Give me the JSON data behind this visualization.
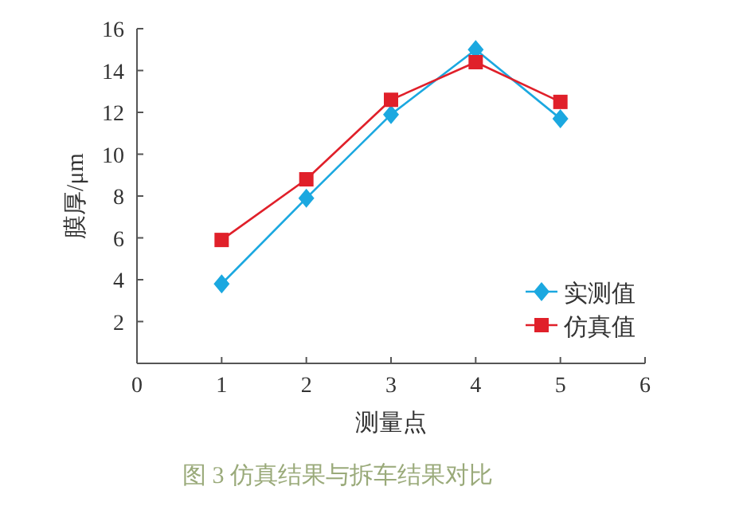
{
  "chart_data": {
    "type": "line",
    "xlabel": "测量点",
    "ylabel": "膜厚/μm",
    "annotations": [
      "图 3  仿真结果与拆车结果对比"
    ],
    "x": [
      1,
      2,
      3,
      4,
      5
    ],
    "series": [
      {
        "name": "实测值",
        "color": "#1ba8e0",
        "marker": "diamond",
        "values": [
          3.8,
          7.9,
          11.9,
          15.0,
          11.7
        ]
      },
      {
        "name": "仿真值",
        "color": "#e0202a",
        "marker": "square",
        "values": [
          5.9,
          8.8,
          12.6,
          14.4,
          12.5
        ]
      }
    ],
    "xlim": [
      0,
      6
    ],
    "xticks": [
      0,
      1,
      2,
      3,
      4,
      5,
      6
    ],
    "ylim": [
      0,
      16
    ],
    "yticks": [
      2,
      4,
      6,
      8,
      10,
      12,
      14,
      16
    ],
    "grid": false,
    "legend": "bottom right"
  }
}
